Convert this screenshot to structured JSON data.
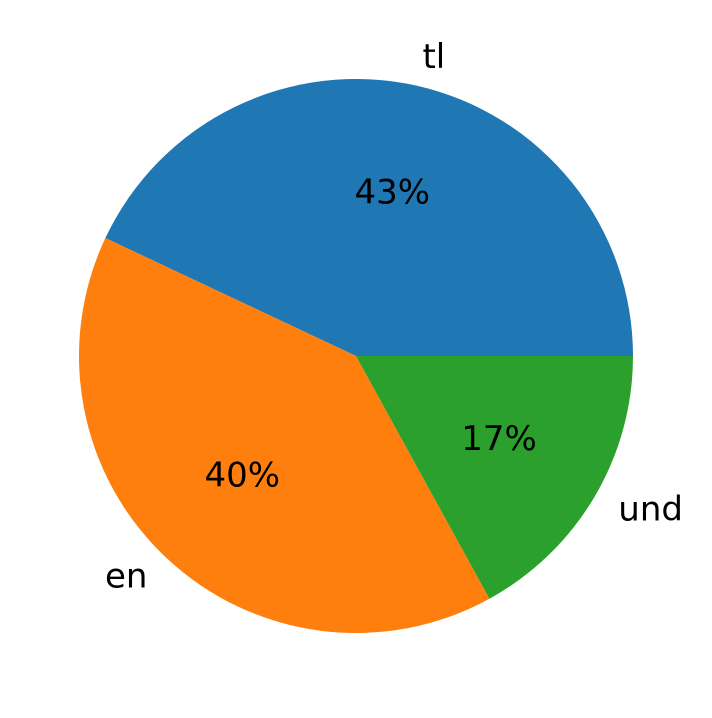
{
  "chart_data": {
    "type": "pie",
    "title": "",
    "slices": [
      {
        "label": "tl",
        "value": 43,
        "pct_label": "43%",
        "color": "#1f77b4"
      },
      {
        "label": "en",
        "value": 40,
        "pct_label": "40%",
        "color": "#ff7f0e"
      },
      {
        "label": "und",
        "value": 17,
        "pct_label": "17%",
        "color": "#2ca02c"
      }
    ],
    "start_angle_deg": 0,
    "direction": "counterclockwise",
    "legend": "none"
  }
}
